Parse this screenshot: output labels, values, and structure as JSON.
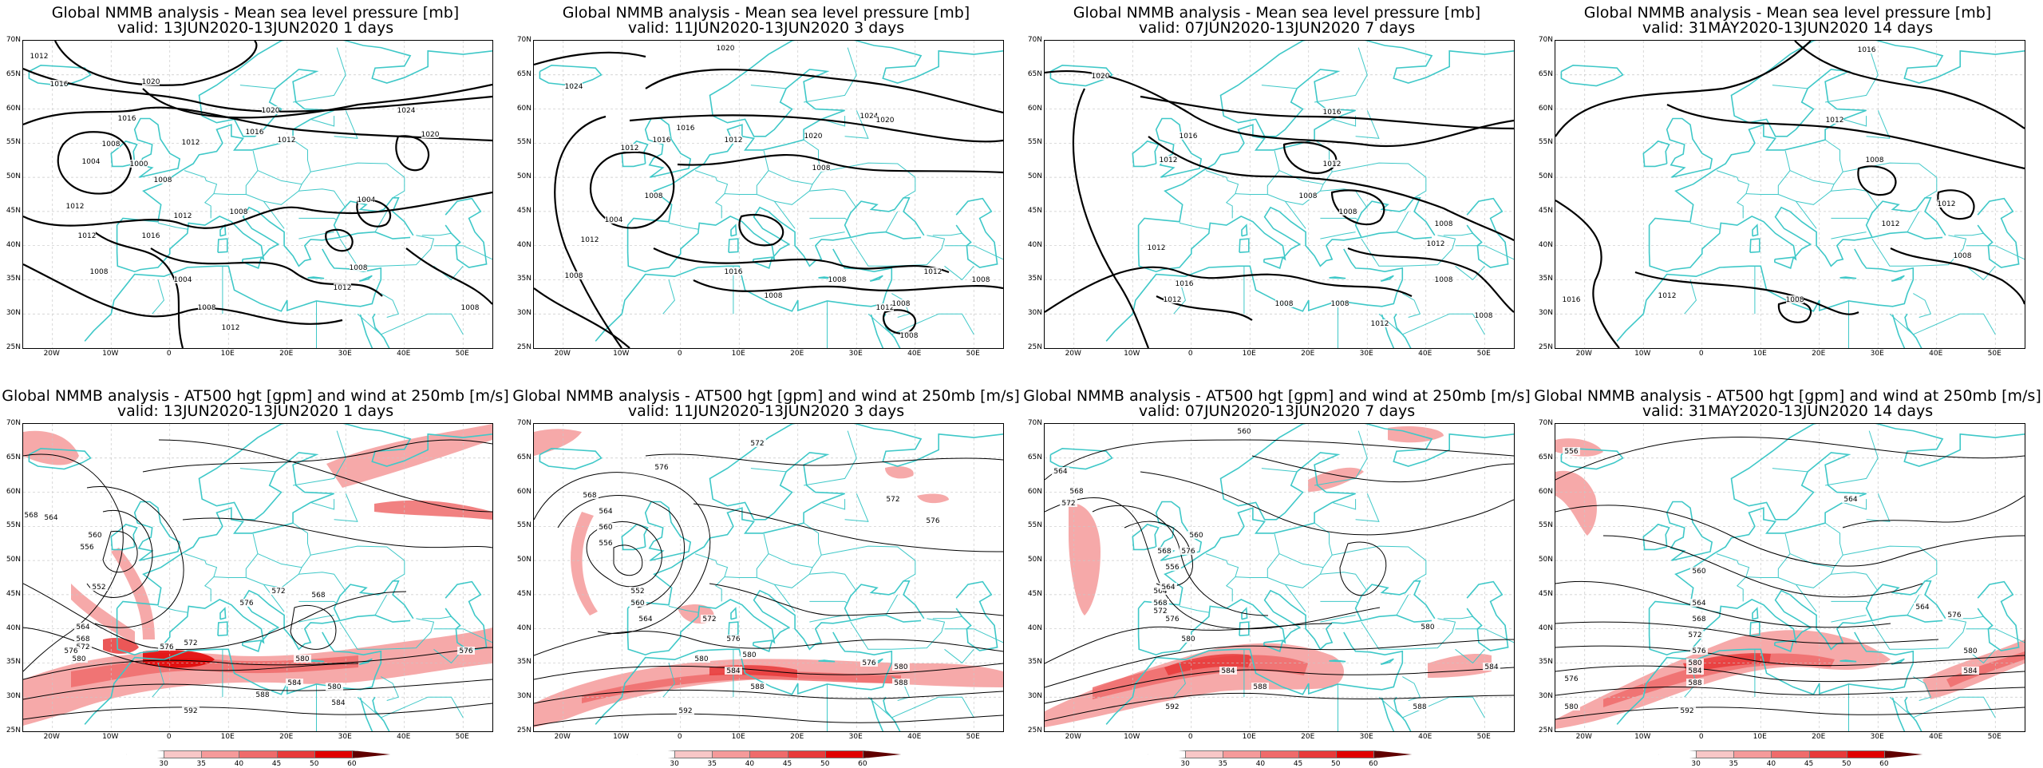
{
  "lat_ticks": [
    "70N",
    "65N",
    "60N",
    "55N",
    "50N",
    "45N",
    "40N",
    "35N",
    "30N",
    "25N"
  ],
  "lon_ticks": [
    "20W",
    "10W",
    "0",
    "10E",
    "20E",
    "30E",
    "40E",
    "50E"
  ],
  "colors": {
    "coastline": "#3fc8c8",
    "contour": "#000000",
    "wind_shades": [
      "#ffffff",
      "#f8c7c7",
      "#f59a9a",
      "#ef6b6b",
      "#e83a3a",
      "#e00000",
      "#600000"
    ]
  },
  "colorbar_labels": [
    "30",
    "35",
    "40",
    "45",
    "50",
    "60"
  ],
  "panels": [
    {
      "row": "mslp",
      "title_line1": "Global NMMB analysis - Mean sea level pressure [mb]",
      "title_line2": "valid: 13JUN2020-13JUN2020   1 days",
      "contour_labels": [
        "1012",
        "1016",
        "1020",
        "1020",
        "1024",
        "1020",
        "1016",
        "1012",
        "1012",
        "1016",
        "1008",
        "1004",
        "1000",
        "1008",
        "1012",
        "1012",
        "1012",
        "1016",
        "1008",
        "1004",
        "1008",
        "1012",
        "1008",
        "1004",
        "1008",
        "1012",
        "1008"
      ]
    },
    {
      "row": "mslp",
      "title_line1": "Global NMMB analysis - Mean sea level pressure [mb]",
      "title_line2": "valid: 11JUN2020-13JUN2020   3 days",
      "contour_labels": [
        "1020",
        "1024",
        "1024",
        "1020",
        "1020",
        "1016",
        "1016",
        "1012",
        "1008",
        "1012",
        "1008",
        "1004",
        "1012",
        "1008",
        "1016",
        "1008",
        "1008",
        "1012",
        "1008",
        "1012",
        "1008",
        "1008"
      ]
    },
    {
      "row": "mslp",
      "title_line1": "Global NMMB analysis - Mean sea level pressure [mb]",
      "title_line2": "valid: 07JUN2020-13JUN2020   7 days",
      "contour_labels": [
        "1020",
        "1016",
        "1016",
        "1012",
        "1012",
        "1008",
        "1008",
        "1008",
        "1012",
        "1012",
        "1008",
        "1016",
        "1012",
        "1008",
        "1008",
        "1012",
        "1008"
      ]
    },
    {
      "row": "mslp",
      "title_line1": "Global NMMB analysis - Mean sea level pressure [mb]",
      "title_line2": "valid: 31MAY2020-13JUN2020   14 days",
      "contour_labels": [
        "1016",
        "1012",
        "1008",
        "1012",
        "1012",
        "1008",
        "1016",
        "1012",
        "1008"
      ]
    },
    {
      "row": "z500",
      "title_line1": "Global NMMB analysis - AT500 hgt [gpm] and wind at 250mb [m/s]",
      "title_line2": "valid: 13JUN2020-13JUN2020   1 days",
      "contour_labels": [
        "568",
        "564",
        "560",
        "556",
        "552",
        "564",
        "568",
        "572",
        "576",
        "580",
        "576",
        "572",
        "576",
        "572",
        "568",
        "580",
        "584",
        "588",
        "592",
        "576",
        "580",
        "584"
      ]
    },
    {
      "row": "z500",
      "title_line1": "Global NMMB analysis - AT500 hgt [gpm] and wind at 250mb [m/s]",
      "title_line2": "valid: 11JUN2020-13JUN2020   3 days",
      "contour_labels": [
        "572",
        "576",
        "572",
        "576",
        "568",
        "564",
        "560",
        "556",
        "552",
        "560",
        "564",
        "572",
        "576",
        "580",
        "584",
        "588",
        "592",
        "580",
        "576",
        "580",
        "588"
      ]
    },
    {
      "row": "z500",
      "title_line1": "Global NMMB analysis - AT500 hgt [gpm] and wind at 250mb [m/s]",
      "title_line2": "valid: 07JUN2020-13JUN2020   7 days",
      "contour_labels": [
        "560",
        "564",
        "568",
        "572",
        "576",
        "560",
        "556",
        "564",
        "568",
        "572",
        "576",
        "580",
        "584",
        "588",
        "592",
        "568",
        "564",
        "580",
        "584",
        "588"
      ]
    },
    {
      "row": "z500",
      "title_line1": "Global NMMB analysis - AT500 hgt [gpm] and wind at 250mb [m/s]",
      "title_line2": "valid: 31MAY2020-13JUN2020   14 days",
      "contour_labels": [
        "556",
        "564",
        "560",
        "564",
        "568",
        "572",
        "576",
        "580",
        "584",
        "588",
        "592",
        "576",
        "580",
        "584",
        "576",
        "580",
        "564"
      ]
    }
  ]
}
